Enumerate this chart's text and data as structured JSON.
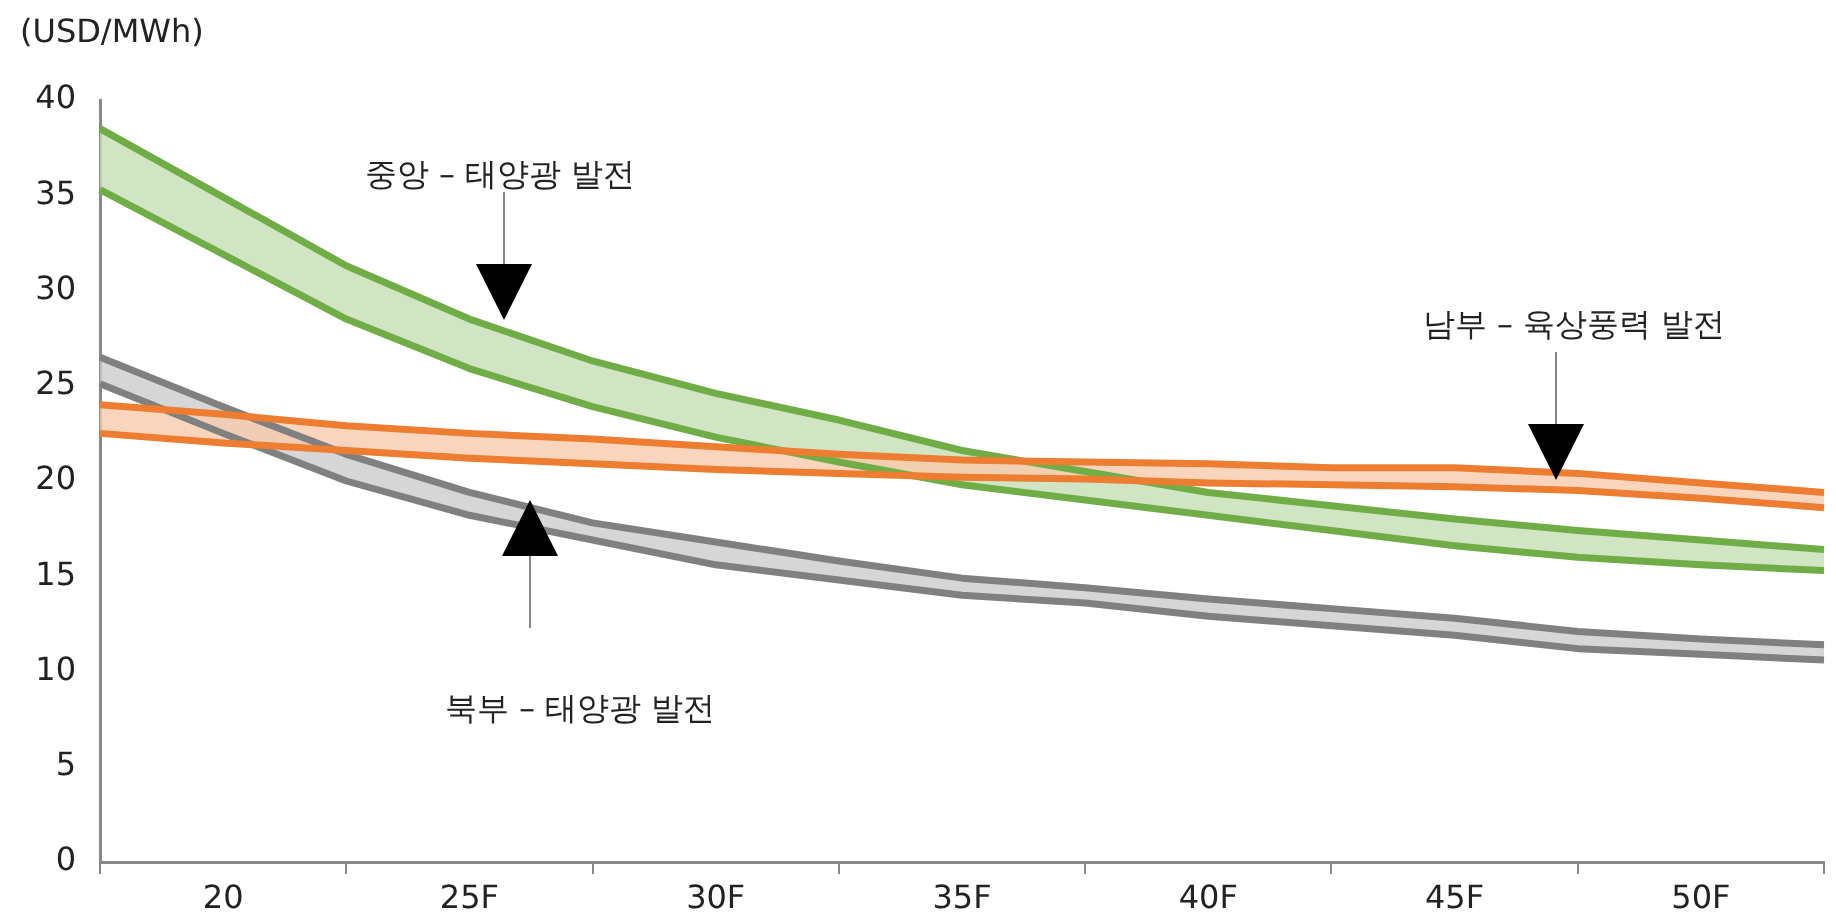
{
  "chart_data": {
    "type": "line",
    "ylabel": "(USD/MWh)",
    "categories": [
      null,
      "20",
      null,
      "25F",
      null,
      "30F",
      null,
      "35F",
      null,
      "40F",
      null,
      "45F",
      null,
      "50F",
      null
    ],
    "ylim": [
      0,
      40
    ],
    "yticks": [
      0,
      5,
      10,
      15,
      20,
      25,
      30,
      35,
      40
    ],
    "grid": false,
    "legend": false,
    "marker": "none",
    "line_style": "solid",
    "series": [
      {
        "color": "#70ad47",
        "values": [
          38.5,
          34.9,
          31.3,
          28.5,
          26.3,
          24.6,
          23.2,
          21.6,
          20.5,
          19.4,
          18.7,
          18.0,
          17.4,
          16.9,
          16.4
        ],
        "upper": [
          38.5,
          34.9,
          31.3,
          28.5,
          26.3,
          24.6,
          23.2,
          21.6,
          20.5,
          19.4,
          18.7,
          18.0,
          17.4,
          16.9,
          16.4
        ],
        "lower": [
          35.3,
          31.9,
          28.5,
          25.9,
          23.9,
          22.3,
          21.0,
          19.8,
          19.0,
          18.2,
          17.4,
          16.6,
          16.0,
          15.6,
          15.3
        ]
      },
      {
        "color": "#70ad47",
        "values": [
          35.3,
          31.9,
          28.5,
          25.9,
          23.9,
          22.3,
          21.0,
          19.8,
          19.0,
          18.2,
          17.4,
          16.6,
          16.0,
          15.6,
          15.3
        ]
      },
      {
        "color": "#808080",
        "values": [
          26.5,
          23.9,
          21.4,
          19.4,
          17.8,
          16.8,
          15.8,
          14.9,
          14.4,
          13.8,
          13.3,
          12.8,
          12.1,
          11.7,
          11.4
        ],
        "upper": [
          26.5,
          23.9,
          21.4,
          19.4,
          17.8,
          16.8,
          15.8,
          14.9,
          14.4,
          13.8,
          13.3,
          12.8,
          12.1,
          11.7,
          11.4
        ],
        "lower": [
          25.1,
          22.5,
          20.0,
          18.2,
          16.9,
          15.6,
          14.8,
          14.0,
          13.6,
          12.9,
          12.4,
          11.9,
          11.2,
          10.9,
          10.6
        ]
      },
      {
        "color": "#808080",
        "values": [
          25.1,
          22.5,
          20.0,
          18.2,
          16.9,
          15.6,
          14.8,
          14.0,
          13.6,
          12.9,
          12.4,
          11.9,
          11.2,
          10.9,
          10.6
        ]
      },
      {
        "color": "#ed7d31",
        "values": [
          24.0,
          23.5,
          22.9,
          22.5,
          22.2,
          21.8,
          21.4,
          21.1,
          21.0,
          20.9,
          20.7,
          20.7,
          20.4,
          19.9,
          19.4
        ],
        "upper": [
          24.0,
          23.5,
          22.9,
          22.5,
          22.2,
          21.8,
          21.4,
          21.1,
          21.0,
          20.9,
          20.7,
          20.7,
          20.4,
          19.9,
          19.4
        ],
        "lower": [
          22.5,
          22.0,
          21.6,
          21.2,
          20.9,
          20.6,
          20.4,
          20.2,
          20.1,
          19.9,
          19.8,
          19.7,
          19.5,
          19.1,
          18.6
        ]
      },
      {
        "color": "#ed7d31",
        "values": [
          22.5,
          22.0,
          21.6,
          21.2,
          20.9,
          20.6,
          20.4,
          20.2,
          20.1,
          19.9,
          19.8,
          19.7,
          19.5,
          19.1,
          18.6
        ]
      }
    ],
    "annotations": [
      "중앙 – 태양광 발전",
      "남부 – 육상풍력 발전",
      "북부 – 태양광 발전"
    ]
  }
}
